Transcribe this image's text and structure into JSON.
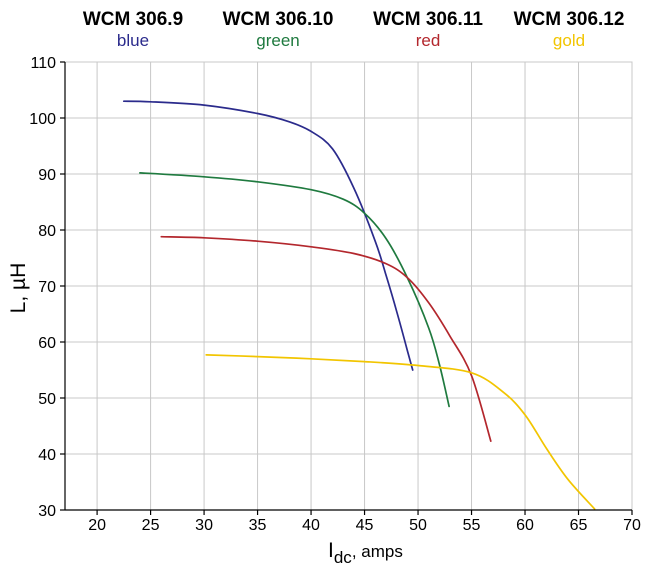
{
  "chart_data": {
    "type": "line",
    "xlabel_main": "I",
    "xlabel_sub": "dc",
    "xlabel_rest": ", amps",
    "ylabel": "L, µH",
    "xlim": [
      17,
      70
    ],
    "ylim": [
      30,
      110
    ],
    "xticks": [
      20,
      25,
      30,
      35,
      40,
      45,
      50,
      55,
      60,
      65,
      70
    ],
    "yticks": [
      30,
      40,
      50,
      60,
      70,
      80,
      90,
      100,
      110
    ],
    "grid": true,
    "legend": [
      {
        "name": "WCM 306.9",
        "color_name": "blue",
        "color": "#2b2b8c"
      },
      {
        "name": "WCM 306.10",
        "color_name": "green",
        "color": "#1f7a3f"
      },
      {
        "name": "WCM 306.11",
        "color_name": "red",
        "color": "#b3272d"
      },
      {
        "name": "WCM 306.12",
        "color_name": "gold",
        "color": "#f2c500"
      }
    ],
    "series": [
      {
        "name": "WCM 306.9",
        "color": "#2b2b8c",
        "points": [
          [
            22.5,
            103
          ],
          [
            25,
            102.9
          ],
          [
            30,
            102.3
          ],
          [
            35,
            100.8
          ],
          [
            38,
            99.3
          ],
          [
            40,
            97.6
          ],
          [
            42,
            94.5
          ],
          [
            44,
            87.5
          ],
          [
            46,
            78
          ],
          [
            47,
            72
          ],
          [
            48,
            65.5
          ],
          [
            49,
            58.5
          ],
          [
            49.5,
            55
          ]
        ]
      },
      {
        "name": "WCM 306.10",
        "color": "#1f7a3f",
        "points": [
          [
            24,
            90.2
          ],
          [
            30,
            89.5
          ],
          [
            35,
            88.6
          ],
          [
            40,
            87.2
          ],
          [
            43,
            85.5
          ],
          [
            45,
            83
          ],
          [
            47,
            78.5
          ],
          [
            49,
            71.5
          ],
          [
            51,
            62.5
          ],
          [
            52,
            56
          ],
          [
            52.9,
            48.5
          ]
        ]
      },
      {
        "name": "WCM 306.11",
        "color": "#b3272d",
        "points": [
          [
            26,
            78.8
          ],
          [
            30,
            78.6
          ],
          [
            35,
            78
          ],
          [
            40,
            77
          ],
          [
            44,
            75.8
          ],
          [
            47,
            74
          ],
          [
            49,
            71.5
          ],
          [
            51,
            67
          ],
          [
            53,
            61
          ],
          [
            55,
            54
          ],
          [
            56.8,
            42.3
          ]
        ]
      },
      {
        "name": "WCM 306.12",
        "color": "#f2c500",
        "points": [
          [
            30.2,
            57.7
          ],
          [
            35,
            57.4
          ],
          [
            40,
            57
          ],
          [
            45,
            56.5
          ],
          [
            50,
            55.8
          ],
          [
            55,
            54.5
          ],
          [
            58,
            51
          ],
          [
            60,
            47
          ],
          [
            62,
            41
          ],
          [
            64,
            35.5
          ],
          [
            66.5,
            30.2
          ]
        ]
      }
    ]
  }
}
